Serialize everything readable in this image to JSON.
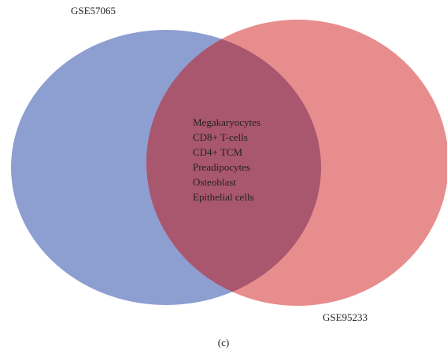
{
  "sets": [
    {
      "label": "GSE57065"
    },
    {
      "label": "GSE95233"
    }
  ],
  "intersection": {
    "items": [
      "Megakaryocytes",
      "CD8+ T-cells",
      "CD4+ TCM",
      "Preadipocytes",
      "Osteoblast",
      "Epithelial cells"
    ]
  },
  "caption": "(c)"
}
